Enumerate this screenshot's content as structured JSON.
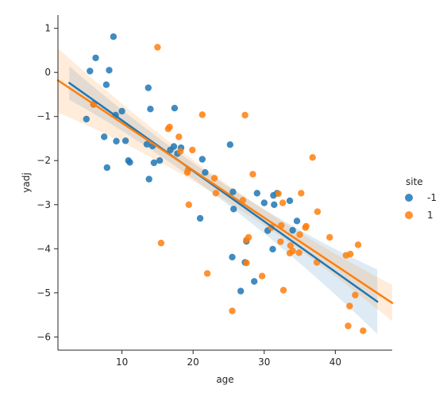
{
  "chart_data": {
    "type": "scatter",
    "xlabel": "age",
    "ylabel": "yadj",
    "xlim": [
      1,
      48
    ],
    "ylim": [
      -6.3,
      1.3
    ],
    "x_ticks": [
      10,
      20,
      30,
      40
    ],
    "y_ticks": [
      -6,
      -5,
      -4,
      -3,
      -2,
      -1,
      0,
      1
    ],
    "grid": false,
    "legend": {
      "title": "site",
      "placement": "right"
    },
    "series": [
      {
        "name": "-1",
        "color": "#1f77b4",
        "points": [
          [
            5.0,
            -1.06
          ],
          [
            5.5,
            0.03
          ],
          [
            6.0,
            -0.72
          ],
          [
            6.3,
            0.33
          ],
          [
            7.5,
            -1.46
          ],
          [
            7.8,
            -0.28
          ],
          [
            7.9,
            -2.16
          ],
          [
            8.2,
            0.05
          ],
          [
            8.8,
            0.81
          ],
          [
            9.1,
            -0.97
          ],
          [
            9.2,
            -1.56
          ],
          [
            10.0,
            -0.88
          ],
          [
            10.5,
            -1.55
          ],
          [
            10.9,
            -2.0
          ],
          [
            11.1,
            -2.04
          ],
          [
            13.5,
            -1.63
          ],
          [
            13.7,
            -0.35
          ],
          [
            13.8,
            -2.42
          ],
          [
            14.0,
            -0.83
          ],
          [
            14.3,
            -1.67
          ],
          [
            14.5,
            -2.05
          ],
          [
            15.3,
            -2.0
          ],
          [
            16.8,
            -1.76
          ],
          [
            17.3,
            -1.68
          ],
          [
            17.4,
            -0.81
          ],
          [
            17.8,
            -1.84
          ],
          [
            18.3,
            -1.71
          ],
          [
            21.0,
            -3.31
          ],
          [
            21.3,
            -1.97
          ],
          [
            21.7,
            -2.27
          ],
          [
            25.2,
            -1.64
          ],
          [
            25.5,
            -4.19
          ],
          [
            25.6,
            -2.71
          ],
          [
            25.7,
            -3.1
          ],
          [
            26.7,
            -4.96
          ],
          [
            27.3,
            -4.31
          ],
          [
            27.5,
            -3.83
          ],
          [
            28.6,
            -4.74
          ],
          [
            29.0,
            -2.74
          ],
          [
            30.0,
            -2.96
          ],
          [
            30.5,
            -3.59
          ],
          [
            31.2,
            -4.01
          ],
          [
            31.3,
            -2.79
          ],
          [
            31.4,
            -3.0
          ],
          [
            31.8,
            -2.74
          ],
          [
            33.6,
            -2.91
          ],
          [
            34.0,
            -3.58
          ],
          [
            34.6,
            -3.37
          ]
        ],
        "fit": {
          "x": [
            2.6,
            45.9
          ],
          "y": [
            -0.24,
            -5.2
          ]
        }
      },
      {
        "name": "1",
        "color": "#ff7f0e",
        "points": [
          [
            6.0,
            -0.73
          ],
          [
            15.0,
            0.57
          ],
          [
            15.5,
            -3.87
          ],
          [
            16.5,
            -1.28
          ],
          [
            16.7,
            -1.24
          ],
          [
            18.0,
            -1.46
          ],
          [
            18.2,
            -1.79
          ],
          [
            19.2,
            -2.27
          ],
          [
            19.3,
            -2.21
          ],
          [
            19.4,
            -3.0
          ],
          [
            19.9,
            -1.76
          ],
          [
            21.3,
            -0.96
          ],
          [
            22.0,
            -4.56
          ],
          [
            23.0,
            -2.4
          ],
          [
            23.2,
            -2.74
          ],
          [
            25.5,
            -5.41
          ],
          [
            27.0,
            -2.9
          ],
          [
            27.3,
            -0.97
          ],
          [
            27.5,
            -3.8
          ],
          [
            27.8,
            -3.74
          ],
          [
            27.5,
            -4.32
          ],
          [
            28.4,
            -2.31
          ],
          [
            29.7,
            -4.62
          ],
          [
            31.0,
            -3.52
          ],
          [
            32.0,
            -2.75
          ],
          [
            32.3,
            -3.84
          ],
          [
            32.4,
            -3.47
          ],
          [
            32.6,
            -2.96
          ],
          [
            32.7,
            -4.94
          ],
          [
            33.6,
            -4.1
          ],
          [
            33.7,
            -3.93
          ],
          [
            34.0,
            -4.05
          ],
          [
            34.9,
            -4.09
          ],
          [
            35.0,
            -3.68
          ],
          [
            35.2,
            -2.74
          ],
          [
            35.8,
            -3.52
          ],
          [
            35.9,
            -3.49
          ],
          [
            36.8,
            -1.93
          ],
          [
            37.4,
            -4.31
          ],
          [
            37.5,
            -3.16
          ],
          [
            39.2,
            -3.74
          ],
          [
            41.5,
            -4.15
          ],
          [
            41.8,
            -5.75
          ],
          [
            42.0,
            -5.3
          ],
          [
            42.1,
            -4.12
          ],
          [
            42.8,
            -5.05
          ],
          [
            43.2,
            -3.91
          ],
          [
            43.9,
            -5.86
          ]
        ],
        "fit": {
          "x": [
            1.0,
            48.0
          ],
          "y": [
            -0.18,
            -5.23
          ]
        }
      }
    ]
  }
}
